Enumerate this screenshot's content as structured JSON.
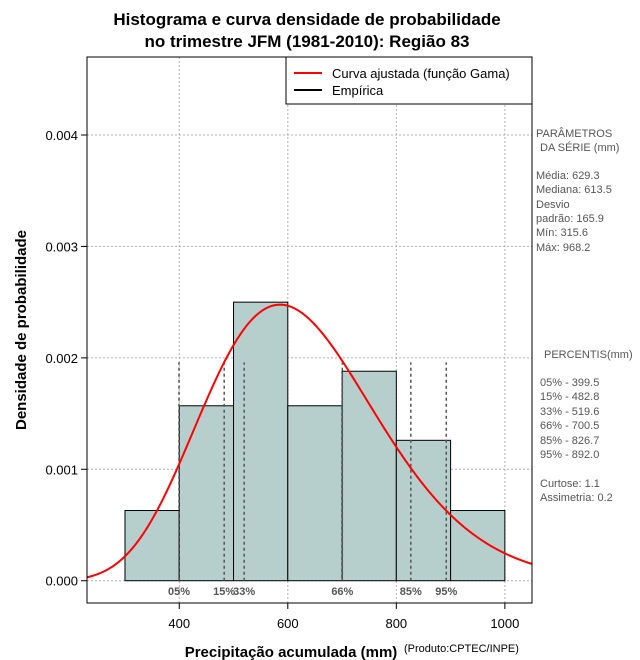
{
  "chart_data": {
    "type": "bar",
    "title_lines": [
      "Histograma e curva densidade de probabilidade",
      "no trimestre JFM (1981-2010): Região 83"
    ],
    "xlabel": "Precipitação acumulada (mm)",
    "ylabel": "Densidade de probabilidade",
    "credit": "(Produto:CPTEC/INPE)",
    "xlim": [
      230,
      1050
    ],
    "ylim": [
      -0.0002,
      0.0047
    ],
    "x_ticks": [
      400,
      600,
      800,
      1000
    ],
    "x_tick_labels": [
      "400",
      "600",
      "800",
      "1000"
    ],
    "y_ticks": [
      0.0,
      0.001,
      0.002,
      0.003,
      0.004
    ],
    "y_tick_labels": [
      "0.000",
      "0.001",
      "0.002",
      "0.003",
      "0.004"
    ],
    "grid": true,
    "bin_edges": [
      300,
      400,
      500,
      600,
      700,
      800,
      900,
      1000
    ],
    "values": [
      0.00063,
      0.00157,
      0.0025,
      0.00157,
      0.00188,
      0.00126,
      0.00063
    ],
    "bar_color": "#b6cfcd",
    "curve": {
      "name": "Curva ajustada (função Gama)",
      "color": "#ff0000",
      "distribution": "gamma",
      "mean": 629.3,
      "sd": 165.9
    },
    "legend": [
      {
        "label": "Curva ajustada (função Gama)",
        "color": "#ff0000"
      },
      {
        "label": "Empírica",
        "color": "#000000"
      }
    ],
    "legend_position": "top-right",
    "percentile_lines": [
      {
        "label": "05%",
        "value": 399.5
      },
      {
        "label": "15%",
        "value": 482.8
      },
      {
        "label": "33%",
        "value": 519.6
      },
      {
        "label": "66%",
        "value": 700.5
      },
      {
        "label": "85%",
        "value": 826.7
      },
      {
        "label": "95%",
        "value": 892.0
      }
    ]
  },
  "side_panel": {
    "params_heading_1": "PARÂMETROS",
    "params_heading_2": "DA SÉRIE (mm)",
    "media": "Média:  629.3",
    "mediana": "Mediana:  613.5",
    "desvio": "Desvio",
    "desvio_padrao": "padrão:  165.9",
    "min": "Mín:  315.6",
    "max": "Máx:  968.2",
    "percentis_heading": "PERCENTIS(mm)",
    "p05": "05% -   399.5",
    "p15": "15% -   482.8",
    "p33": "33% -   519.6",
    "p66": "66% -   700.5",
    "p85": "85% -   826.7",
    "p95": "95% -   892.0",
    "curtose": "Curtose:  1.1",
    "assimetria": "Assimetria:  0.2"
  }
}
